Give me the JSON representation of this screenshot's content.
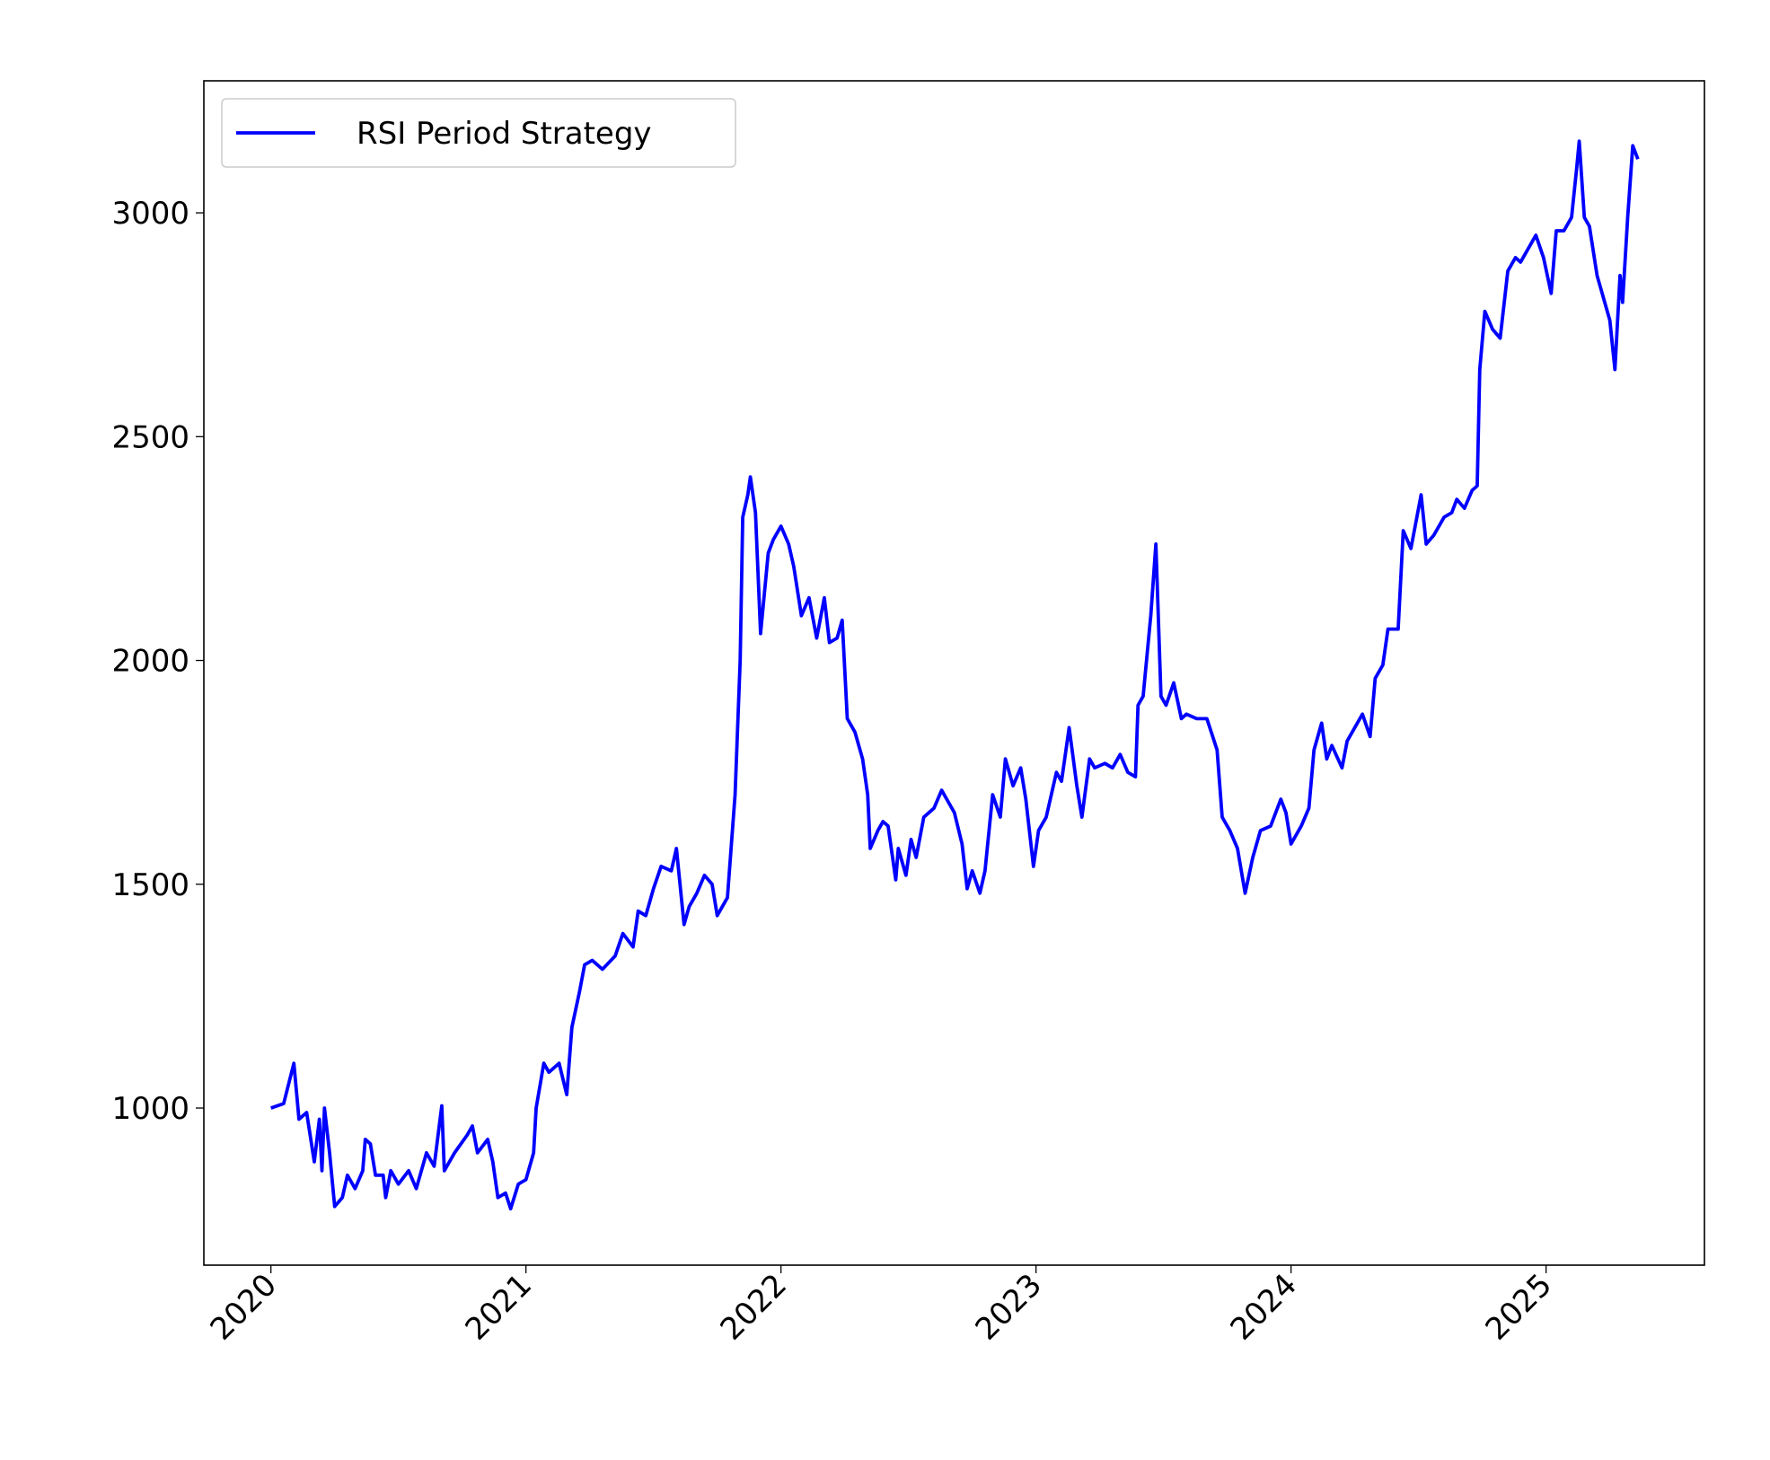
{
  "chart_data": {
    "type": "line",
    "x": [
      2020.0,
      2020.05,
      2020.09,
      2020.11,
      2020.14,
      2020.17,
      2020.19,
      2020.2,
      2020.21,
      2020.23,
      2020.25,
      2020.28,
      2020.3,
      2020.33,
      2020.36,
      2020.37,
      2020.39,
      2020.41,
      2020.44,
      2020.45,
      2020.47,
      2020.5,
      2020.54,
      2020.57,
      2020.61,
      2020.64,
      2020.67,
      2020.68,
      2020.72,
      2020.77,
      2020.79,
      2020.81,
      2020.85,
      2020.87,
      2020.89,
      2020.92,
      2020.94,
      2020.97,
      2021.0,
      2021.03,
      2021.04,
      2021.07,
      2021.09,
      2021.13,
      2021.16,
      2021.18,
      2021.21,
      2021.23,
      2021.26,
      2021.3,
      2021.35,
      2021.38,
      2021.42,
      2021.44,
      2021.47,
      2021.5,
      2021.53,
      2021.57,
      2021.59,
      2021.62,
      2021.64,
      2021.67,
      2021.7,
      2021.73,
      2021.75,
      2021.79,
      2021.82,
      2021.84,
      2021.85,
      2021.87,
      2021.88,
      2021.9,
      2021.92,
      2021.95,
      2021.97,
      2022.0,
      2022.03,
      2022.05,
      2022.08,
      2022.11,
      2022.14,
      2022.17,
      2022.19,
      2022.22,
      2022.24,
      2022.26,
      2022.29,
      2022.32,
      2022.34,
      2022.35,
      2022.38,
      2022.4,
      2022.42,
      2022.45,
      2022.46,
      2022.49,
      2022.51,
      2022.53,
      2022.56,
      2022.6,
      2022.63,
      2022.65,
      2022.68,
      2022.71,
      2022.73,
      2022.75,
      2022.78,
      2022.8,
      2022.83,
      2022.86,
      2022.88,
      2022.91,
      2022.94,
      2022.96,
      2022.99,
      2023.01,
      2023.04,
      2023.08,
      2023.1,
      2023.13,
      2023.16,
      2023.18,
      2023.21,
      2023.23,
      2023.27,
      2023.3,
      2023.33,
      2023.36,
      2023.39,
      2023.4,
      2023.42,
      2023.45,
      2023.47,
      2023.49,
      2023.51,
      2023.54,
      2023.57,
      2023.59,
      2023.63,
      2023.67,
      2023.71,
      2023.73,
      2023.76,
      2023.79,
      2023.82,
      2023.85,
      2023.88,
      2023.92,
      2023.96,
      2023.98,
      2024.0,
      2024.04,
      2024.07,
      2024.09,
      2024.12,
      2024.14,
      2024.16,
      2024.2,
      2024.22,
      2024.25,
      2024.28,
      2024.31,
      2024.33,
      2024.36,
      2024.38,
      2024.42,
      2024.44,
      2024.47,
      2024.51,
      2024.53,
      2024.56,
      2024.6,
      2024.63,
      2024.65,
      2024.68,
      2024.71,
      2024.73,
      2024.74,
      2024.76,
      2024.79,
      2024.82,
      2024.85,
      2024.88,
      2024.9,
      2024.93,
      2024.96,
      2024.99,
      2025.02,
      2025.04,
      2025.07,
      2025.1,
      2025.12,
      2025.13,
      2025.15,
      2025.17,
      2025.2,
      2025.22,
      2025.25,
      2025.27,
      2025.29,
      2025.3,
      2025.32,
      2025.34,
      2025.36
    ],
    "series": [
      {
        "name": "RSI Period Strategy",
        "color": "#0000ff",
        "values": [
          1000,
          1010,
          1100,
          975,
          990,
          880,
          975,
          860,
          1000,
          900,
          780,
          800,
          850,
          820,
          860,
          930,
          920,
          850,
          850,
          800,
          860,
          830,
          860,
          820,
          900,
          870,
          1005,
          860,
          900,
          940,
          960,
          900,
          930,
          880,
          800,
          810,
          775,
          830,
          840,
          900,
          1000,
          1100,
          1080,
          1100,
          1030,
          1180,
          1260,
          1320,
          1330,
          1310,
          1340,
          1390,
          1360,
          1440,
          1430,
          1490,
          1540,
          1530,
          1580,
          1410,
          1450,
          1480,
          1520,
          1500,
          1430,
          1470,
          1700,
          2000,
          2320,
          2370,
          2410,
          2330,
          2060,
          2240,
          2270,
          2300,
          2260,
          2210,
          2100,
          2140,
          2050,
          2140,
          2040,
          2050,
          2090,
          1870,
          1840,
          1780,
          1700,
          1580,
          1620,
          1640,
          1630,
          1510,
          1580,
          1520,
          1600,
          1560,
          1650,
          1670,
          1710,
          1690,
          1660,
          1590,
          1490,
          1530,
          1480,
          1530,
          1700,
          1650,
          1780,
          1720,
          1760,
          1690,
          1540,
          1620,
          1650,
          1750,
          1730,
          1850,
          1720,
          1650,
          1780,
          1760,
          1770,
          1760,
          1790,
          1750,
          1740,
          1900,
          1920,
          2100,
          2260,
          1920,
          1900,
          1950,
          1870,
          1880,
          1870,
          1870,
          1800,
          1650,
          1620,
          1580,
          1480,
          1560,
          1620,
          1630,
          1690,
          1660,
          1590,
          1630,
          1670,
          1800,
          1860,
          1780,
          1810,
          1760,
          1820,
          1850,
          1880,
          1830,
          1960,
          1990,
          2070,
          2070,
          2290,
          2250,
          2370,
          2260,
          2280,
          2320,
          2330,
          2360,
          2340,
          2380,
          2390,
          2650,
          2780,
          2740,
          2720,
          2870,
          2900,
          2890,
          2920,
          2950,
          2900,
          2820,
          2960,
          2960,
          2990,
          3100,
          3160,
          2990,
          2970,
          2860,
          2820,
          2760,
          2650,
          2860,
          2800,
          2990,
          3150,
          3120
        ]
      }
    ],
    "xlim": [
      2019.737,
      2025.621
    ],
    "xticks": [
      2020,
      2021,
      2022,
      2023,
      2024,
      2025
    ],
    "ylim": [
      649,
      3295
    ],
    "yticks": [
      1000,
      1500,
      2000,
      2500,
      3000
    ],
    "grid": false,
    "legend": "upper left"
  }
}
